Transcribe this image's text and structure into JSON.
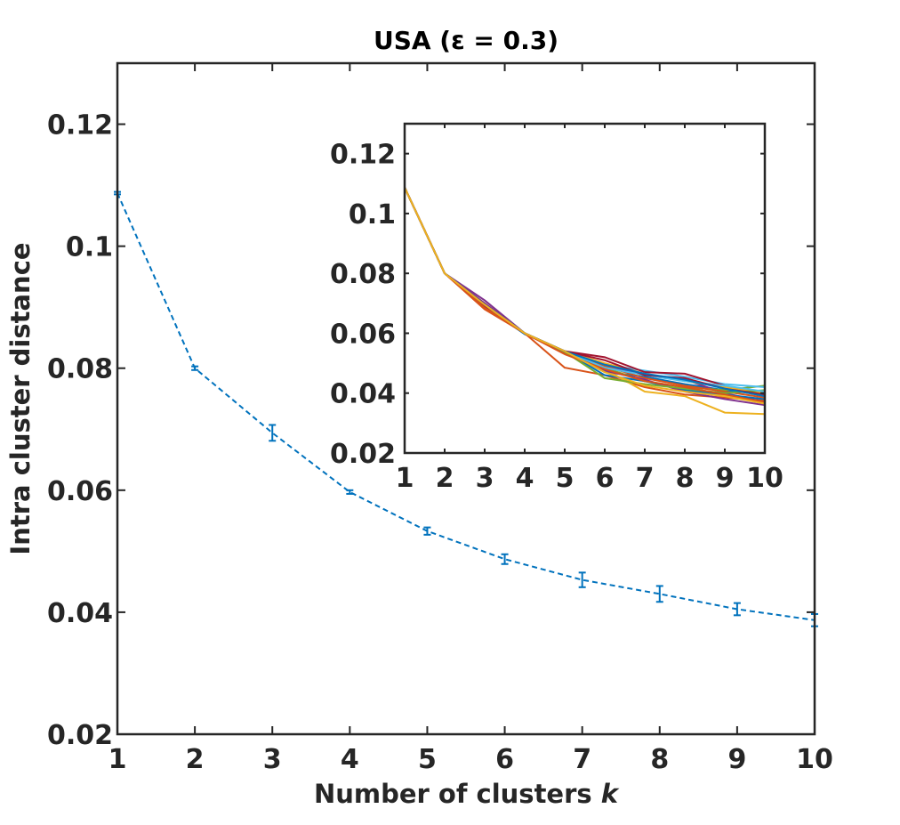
{
  "chart_data": [
    {
      "type": "line",
      "title": "USA (ε = 0.3)",
      "xlabel": "Number of clusters k",
      "xlabel_prefix": "Number of clusters ",
      "xlabel_var": "k",
      "ylabel": "Intra cluster distance",
      "xlim": [
        1,
        10
      ],
      "ylim": [
        0.02,
        0.13
      ],
      "x_ticks": [
        1,
        2,
        3,
        4,
        5,
        6,
        7,
        8,
        9,
        10
      ],
      "x_tick_labels": [
        "1",
        "2",
        "3",
        "4",
        "5",
        "6",
        "7",
        "8",
        "9",
        "10"
      ],
      "y_ticks": [
        0.02,
        0.04,
        0.06,
        0.08,
        0.1,
        0.12
      ],
      "y_tick_labels": [
        "0.02",
        "0.04",
        "0.06",
        "0.08",
        "0.1",
        "0.12"
      ],
      "grid": false,
      "line_style": "dashed",
      "series": [
        {
          "x": [
            1,
            2,
            3,
            4,
            5,
            6,
            7,
            8,
            9,
            10
          ],
          "values": [
            0.1087,
            0.08,
            0.0694,
            0.0597,
            0.0533,
            0.0487,
            0.0453,
            0.043,
            0.0405,
            0.0387
          ],
          "error": [
            0.0002,
            0.0003,
            0.0013,
            0.0003,
            0.0006,
            0.0008,
            0.0012,
            0.0013,
            0.001,
            0.001
          ],
          "color": "#0072bd"
        }
      ]
    },
    {
      "type": "line",
      "title": "",
      "xlabel": "",
      "ylabel": "",
      "xlim": [
        1,
        10
      ],
      "ylim": [
        0.02,
        0.13
      ],
      "x_ticks": [
        1,
        2,
        3,
        4,
        5,
        6,
        7,
        8,
        9,
        10
      ],
      "x_tick_labels": [
        "1",
        "2",
        "3",
        "4",
        "5",
        "6",
        "7",
        "8",
        "9",
        "10"
      ],
      "y_ticks": [
        0.02,
        0.04,
        0.06,
        0.08,
        0.1,
        0.12
      ],
      "y_tick_labels": [
        "0.02",
        "0.04",
        "0.06",
        "0.08",
        "0.1",
        "0.12"
      ],
      "grid": false,
      "series": [
        {
          "color": "#0072bd",
          "values": [
            0.1087,
            0.08,
            0.069,
            0.0597,
            0.054,
            0.047,
            0.0455,
            0.043,
            0.041,
            0.0395
          ]
        },
        {
          "color": "#d95319",
          "values": [
            0.1087,
            0.08,
            0.068,
            0.06,
            0.0485,
            0.046,
            0.042,
            0.0395,
            0.0385,
            0.0375
          ]
        },
        {
          "color": "#edb120",
          "values": [
            0.1087,
            0.08,
            0.07,
            0.06,
            0.054,
            0.048,
            0.0405,
            0.039,
            0.0335,
            0.033
          ]
        },
        {
          "color": "#7e2f8e",
          "values": [
            0.1087,
            0.08,
            0.071,
            0.06,
            0.0535,
            0.049,
            0.046,
            0.0445,
            0.04,
            0.037
          ]
        },
        {
          "color": "#77ac30",
          "values": [
            0.1087,
            0.08,
            0.07,
            0.06,
            0.054,
            0.0485,
            0.044,
            0.042,
            0.041,
            0.0425
          ]
        },
        {
          "color": "#4dbeee",
          "values": [
            0.1087,
            0.08,
            0.069,
            0.06,
            0.054,
            0.0495,
            0.0475,
            0.0455,
            0.043,
            0.042
          ]
        },
        {
          "color": "#a2142f",
          "values": [
            0.1087,
            0.08,
            0.0695,
            0.06,
            0.054,
            0.052,
            0.047,
            0.0465,
            0.0425,
            0.039
          ]
        },
        {
          "color": "#0072bd",
          "values": [
            0.1087,
            0.08,
            0.0695,
            0.06,
            0.054,
            0.046,
            0.044,
            0.041,
            0.0395,
            0.038
          ]
        },
        {
          "color": "#d95319",
          "values": [
            0.1087,
            0.08,
            0.069,
            0.06,
            0.0535,
            0.049,
            0.045,
            0.0425,
            0.0405,
            0.0385
          ]
        },
        {
          "color": "#edb120",
          "values": [
            0.1087,
            0.08,
            0.0695,
            0.06,
            0.054,
            0.05,
            0.0465,
            0.044,
            0.042,
            0.04
          ]
        },
        {
          "color": "#7e2f8e",
          "values": [
            0.1087,
            0.08,
            0.07,
            0.06,
            0.054,
            0.0475,
            0.0445,
            0.0405,
            0.038,
            0.036
          ]
        },
        {
          "color": "#77ac30",
          "values": [
            0.1087,
            0.08,
            0.069,
            0.06,
            0.0538,
            0.045,
            0.043,
            0.0415,
            0.04,
            0.041
          ]
        },
        {
          "color": "#4dbeee",
          "values": [
            0.1087,
            0.08,
            0.0695,
            0.06,
            0.054,
            0.0485,
            0.046,
            0.044,
            0.0425,
            0.0405
          ]
        },
        {
          "color": "#a2142f",
          "values": [
            0.1087,
            0.08,
            0.069,
            0.06,
            0.054,
            0.051,
            0.046,
            0.045,
            0.0415,
            0.0395
          ]
        },
        {
          "color": "#0072bd",
          "values": [
            0.1087,
            0.08,
            0.0695,
            0.06,
            0.054,
            0.0495,
            0.0465,
            0.0445,
            0.0415,
            0.039
          ]
        },
        {
          "color": "#d95319",
          "values": [
            0.1087,
            0.08,
            0.0685,
            0.06,
            0.053,
            0.048,
            0.044,
            0.042,
            0.0395,
            0.037
          ]
        },
        {
          "color": "#edb120",
          "values": [
            0.1087,
            0.08,
            0.0695,
            0.06,
            0.054,
            0.047,
            0.0425,
            0.0405,
            0.039,
            0.0365
          ]
        }
      ]
    }
  ]
}
